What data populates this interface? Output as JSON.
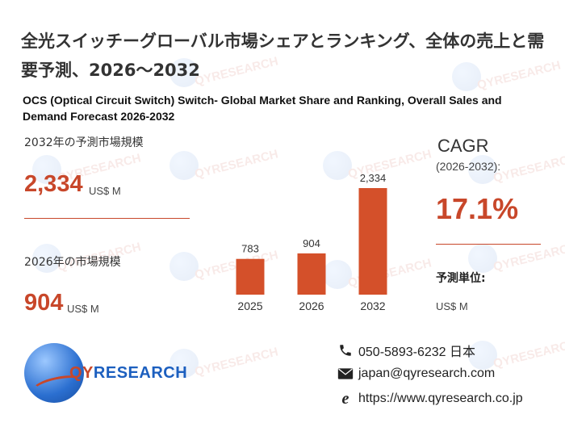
{
  "title_jp": "全光スイッチーグローバル市場シェアとランキング、全体の売上と需要予測、2026～2032",
  "title_en": "OCS (Optical Circuit Switch) Switch- Global Market Share and Ranking, Overall Sales and Demand Forecast 2026-2032",
  "forecast_2032": {
    "label": "2032年の予測市場規模",
    "value": "2,334",
    "unit": "US$ M"
  },
  "market_2026": {
    "label": "2026年の市場規模",
    "value": "904",
    "unit": "US$ M"
  },
  "cagr": {
    "label": "CAGR",
    "period": "(2026-2032):",
    "value": "17.1%",
    "unit_label": "予測単位:",
    "unit_value": "US$ M"
  },
  "chart_data": {
    "type": "bar",
    "categories": [
      "2025",
      "2026",
      "2032"
    ],
    "values": [
      783,
      904,
      2334
    ],
    "data_labels": [
      "783",
      "904",
      "2,334"
    ],
    "title": "",
    "xlabel": "",
    "ylabel": "",
    "color": "#d4502a",
    "ylim": [
      0,
      2334
    ]
  },
  "logo": {
    "text_q": "QY",
    "text_rest": "RESEARCH"
  },
  "contact": {
    "phone": "050-5893-6232 日本",
    "email": "japan@qyresearch.com",
    "website": "https://www.qyresearch.co.jp"
  },
  "watermark_text": "QYRESEARCH",
  "colors": {
    "accent": "#c8472a",
    "bar": "#d4502a",
    "brand_blue": "#1c5fbf"
  }
}
